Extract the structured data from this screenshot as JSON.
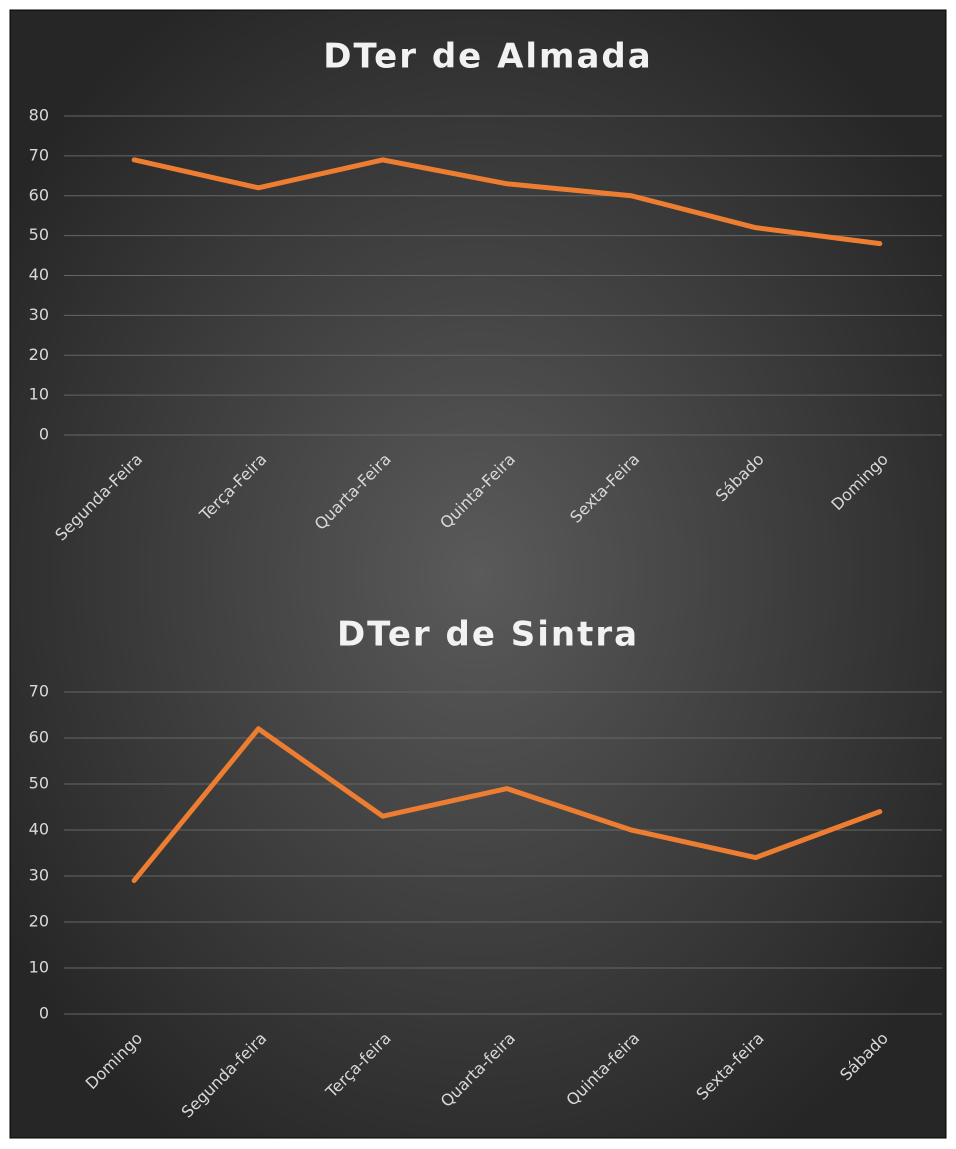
{
  "chart_data": [
    {
      "type": "line",
      "title": "DTer de Almada",
      "categories": [
        "Segunda-Feira",
        "Terça-Feira",
        "Quarta-Feira",
        "Quinta-Feira",
        "Sexta-Feira",
        "Sábado",
        "Domingo"
      ],
      "values": [
        69,
        62,
        69,
        63,
        60,
        52,
        48
      ],
      "color": "#ed7d31",
      "ylim": [
        0,
        80
      ],
      "yticks": [
        0,
        10,
        20,
        30,
        40,
        50,
        60,
        70,
        80
      ],
      "grid": true
    },
    {
      "type": "line",
      "title": "DTer de Sintra",
      "categories": [
        "Domingo",
        "Segunda-feira",
        "Terça-feira",
        "Quarta-feira",
        "Quinta-feira",
        "Sexta-feira",
        "Sábado"
      ],
      "values": [
        29,
        62,
        43,
        49,
        40,
        34,
        44
      ],
      "color": "#ed7d31",
      "ylim": [
        0,
        70
      ],
      "yticks": [
        0,
        10,
        20,
        30,
        40,
        50,
        60,
        70
      ],
      "grid": true
    }
  ]
}
